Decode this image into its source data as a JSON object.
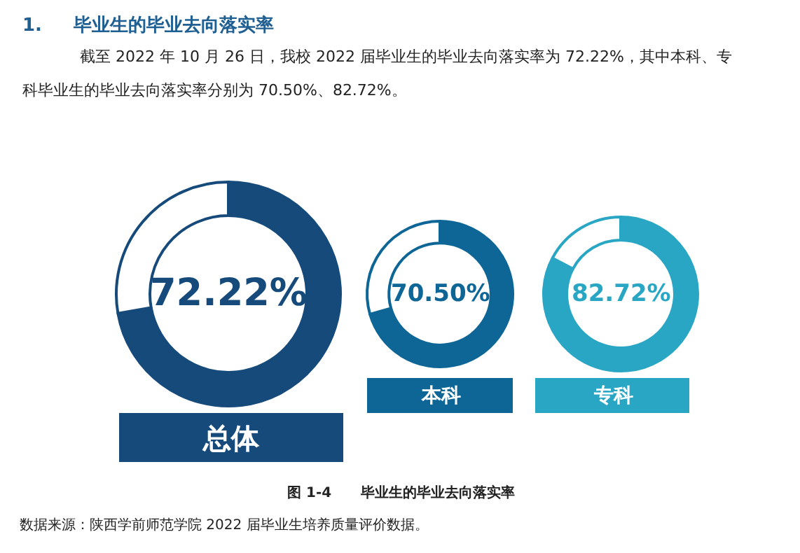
{
  "chart_data": [
    {
      "type": "other",
      "title": "1.     毕业生的毕业去向落实率",
      "subtitle": "截至 2022 年 10 月 26 日，我校 2022 届毕业生的毕业去向落实率为 72.22%，其中本科、专科毕业生的毕业去向落实率分别为 70.50%、82.72%。",
      "annotations": [
        "图 1-4      毕业生的毕业去向落实率",
        "数据来源：陕西学前师范学院 2022 届毕业生培养质量评价数据。"
      ]
    },
    {
      "type": "donut",
      "title": "总体",
      "categories": [
        null,
        null
      ],
      "values": [
        72.22,
        27.78
      ],
      "colors": [
        "#154a7a",
        "#ffffff"
      ],
      "value_labels": [
        "72.22%",
        null
      ]
    },
    {
      "type": "donut",
      "title": "本科",
      "categories": [
        null,
        null
      ],
      "values": [
        70.5,
        29.5
      ],
      "colors": [
        "#0e6696",
        "#ffffff"
      ],
      "value_labels": [
        "70.50%",
        null
      ]
    },
    {
      "type": "donut",
      "title": "专科",
      "categories": [
        null,
        null
      ],
      "values": [
        82.72,
        17.28
      ],
      "colors": [
        "#29a6c4",
        "#ffffff"
      ],
      "value_labels": [
        "82.72%",
        null
      ]
    }
  ]
}
